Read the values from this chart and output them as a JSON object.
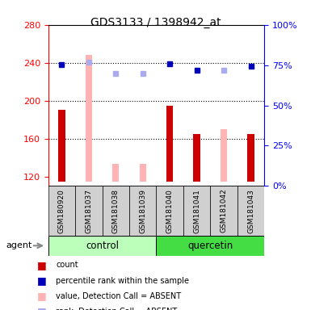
{
  "title": "GDS3133 / 1398942_at",
  "samples": [
    "GSM180920",
    "GSM181037",
    "GSM181038",
    "GSM181039",
    "GSM181040",
    "GSM181041",
    "GSM181042",
    "GSM181043"
  ],
  "ylim_left": [
    110,
    280
  ],
  "ylim_right": [
    0,
    100
  ],
  "yticks_left": [
    120,
    160,
    200,
    240,
    280
  ],
  "yticks_right": [
    0,
    25,
    50,
    75,
    100
  ],
  "hlines": [
    160,
    200,
    240
  ],
  "count_values": [
    190,
    null,
    null,
    null,
    195,
    165,
    null,
    165
  ],
  "count_color": "#cc0000",
  "absent_bar_values": [
    null,
    248,
    133,
    133,
    null,
    null,
    170,
    null
  ],
  "absent_bar_color": "#ffb3b3",
  "rank_present_values": [
    238,
    null,
    null,
    null,
    239,
    232,
    null,
    236
  ],
  "rank_present_color": "#0000bb",
  "rank_absent_values": [
    null,
    241,
    229,
    229,
    null,
    null,
    232,
    null
  ],
  "rank_absent_color": "#aaaaee",
  "bar_width": 0.25,
  "base": 115,
  "control_color": "#bbffbb",
  "quercetin_color": "#44dd44",
  "legend_items": [
    {
      "label": "count",
      "color": "#cc0000"
    },
    {
      "label": "percentile rank within the sample",
      "color": "#0000bb"
    },
    {
      "label": "value, Detection Call = ABSENT",
      "color": "#ffb3b3"
    },
    {
      "label": "rank, Detection Call = ABSENT",
      "color": "#aaaaee"
    }
  ]
}
